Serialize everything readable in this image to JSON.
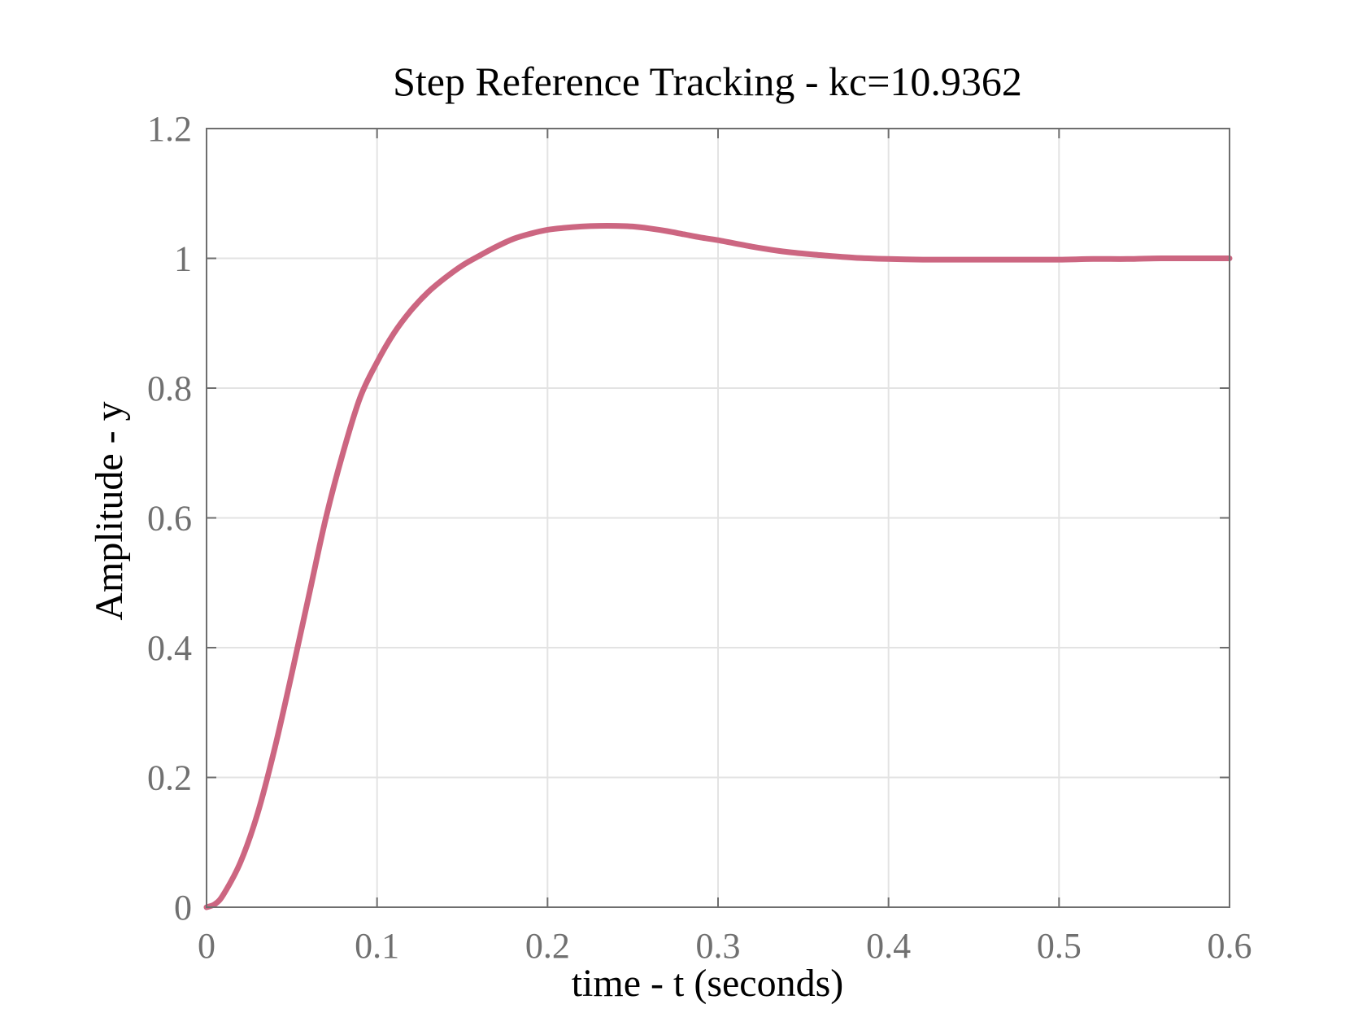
{
  "chart_data": {
    "type": "line",
    "title": "Step Reference Tracking - kc=10.9362",
    "xlabel": "time - t (seconds)",
    "ylabel": "Amplitude - y",
    "xlim": [
      0,
      0.6
    ],
    "ylim": [
      0,
      1.2
    ],
    "xticks": [
      0,
      0.1,
      0.2,
      0.3,
      0.4,
      0.5,
      0.6
    ],
    "yticks": [
      0,
      0.2,
      0.4,
      0.6,
      0.8,
      1.0,
      1.2
    ],
    "xtick_labels": [
      "0",
      "0.1",
      "0.2",
      "0.3",
      "0.4",
      "0.5",
      "0.6"
    ],
    "ytick_labels": [
      "0",
      "0.2",
      "0.4",
      "0.6",
      "0.8",
      "1",
      "1.2"
    ],
    "grid": true,
    "series": [
      {
        "color": "#cc6681",
        "x": [
          0,
          0.005,
          0.01,
          0.02,
          0.03,
          0.04,
          0.05,
          0.06,
          0.07,
          0.08,
          0.09,
          0.1,
          0.11,
          0.12,
          0.13,
          0.14,
          0.15,
          0.16,
          0.17,
          0.18,
          0.19,
          0.2,
          0.21,
          0.22,
          0.23,
          0.24,
          0.25,
          0.26,
          0.27,
          0.28,
          0.29,
          0.3,
          0.32,
          0.34,
          0.36,
          0.38,
          0.4,
          0.42,
          0.44,
          0.46,
          0.48,
          0.5,
          0.52,
          0.54,
          0.56,
          0.58,
          0.6
        ],
        "y": [
          0,
          0.005,
          0.02,
          0.07,
          0.145,
          0.245,
          0.36,
          0.48,
          0.6,
          0.7,
          0.785,
          0.84,
          0.885,
          0.92,
          0.948,
          0.97,
          0.989,
          1.004,
          1.018,
          1.03,
          1.038,
          1.044,
          1.047,
          1.049,
          1.05,
          1.05,
          1.049,
          1.046,
          1.042,
          1.037,
          1.032,
          1.028,
          1.018,
          1.01,
          1.005,
          1.001,
          0.999,
          0.998,
          0.998,
          0.998,
          0.998,
          0.998,
          0.999,
          0.999,
          1.0,
          1.0,
          1.0
        ]
      }
    ]
  }
}
